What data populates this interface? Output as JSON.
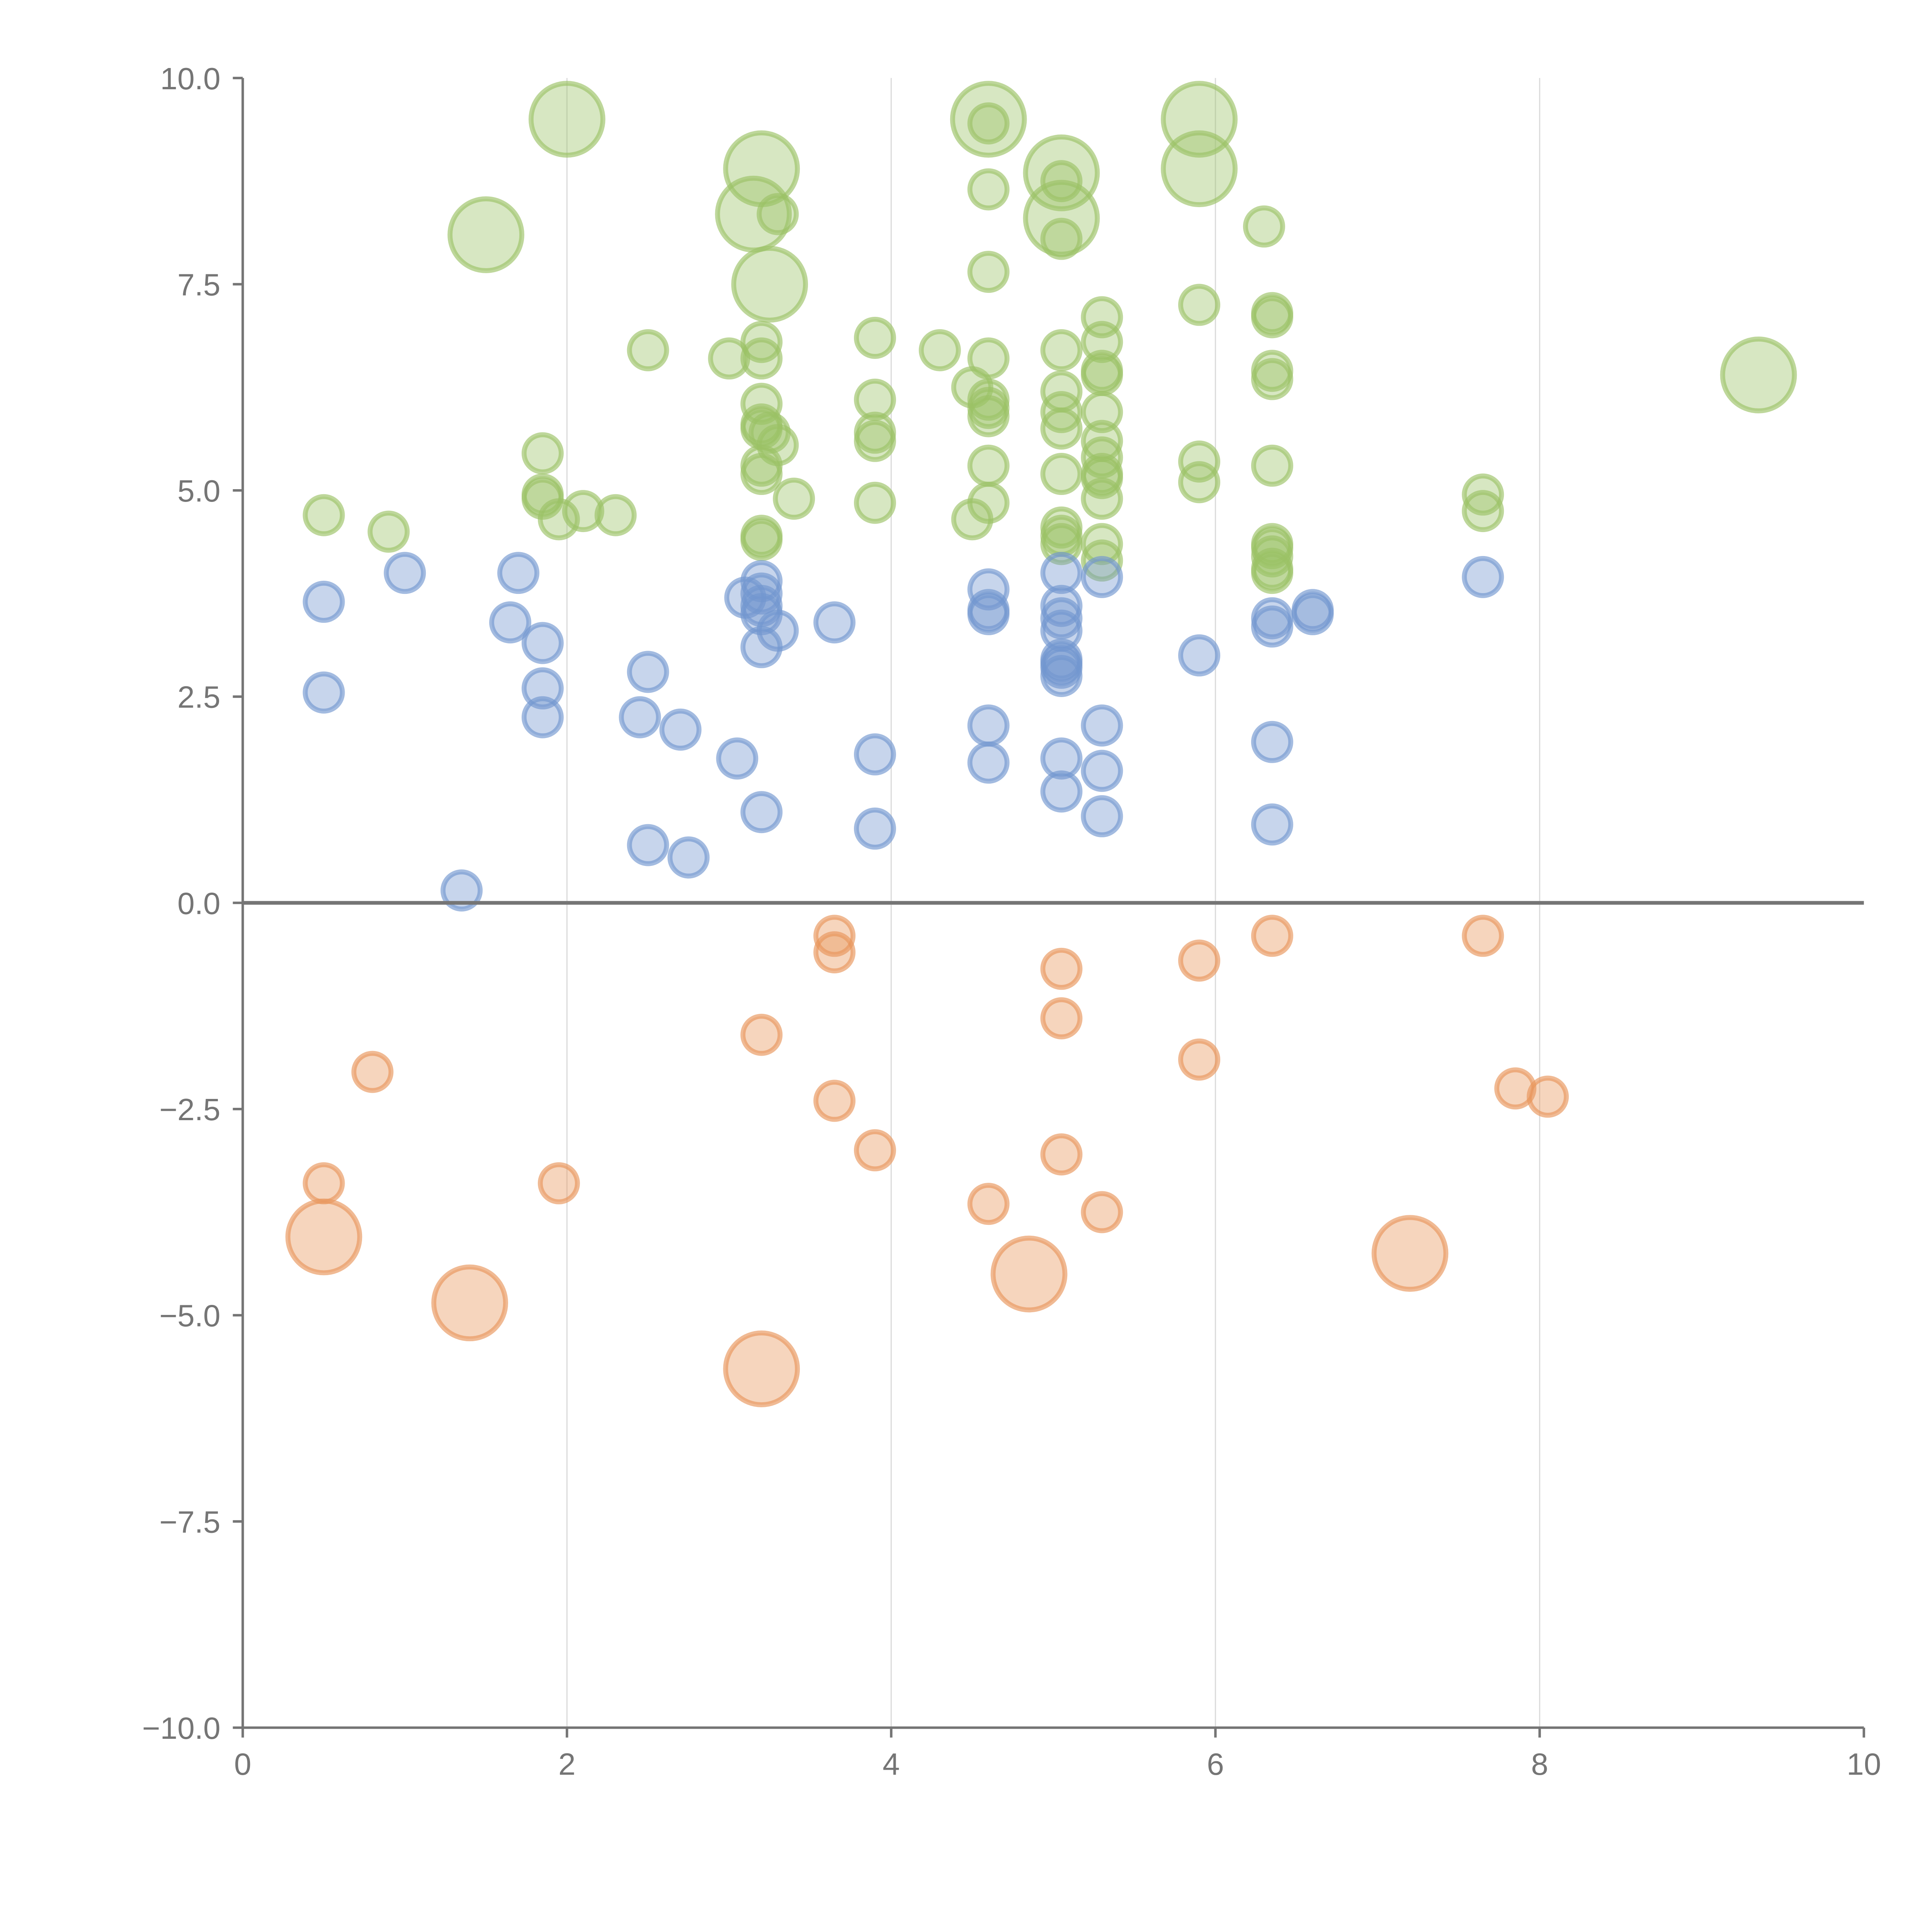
{
  "chart_data": {
    "type": "scatter",
    "title": "",
    "xlabel": "",
    "ylabel": "",
    "xlim": [
      0,
      10
    ],
    "ylim": [
      -10,
      10
    ],
    "x_ticks": [
      0,
      2,
      4,
      6,
      8,
      10
    ],
    "y_ticks": [
      -10,
      -7.5,
      -5,
      -2.5,
      0,
      2.5,
      5,
      7.5,
      10
    ],
    "x_tick_labels": [
      "0",
      "2",
      "4",
      "6",
      "8",
      "10"
    ],
    "y_tick_labels": [
      "−10.0",
      "−7.5",
      "−5.0",
      "−2.5",
      "0.0",
      "2.5",
      "5.0",
      "7.5",
      "10.0"
    ],
    "grid": "vertical",
    "reference_line_y": 0,
    "colors": {
      "green": "#9bc266",
      "blue": "#7297cf",
      "orange": "#e8955a"
    },
    "series": [
      {
        "name": "green",
        "color": "#9bc266",
        "points": [
          [
            2.0,
            9.5,
            3
          ],
          [
            4.6,
            9.5,
            3
          ],
          [
            5.9,
            9.5,
            3
          ],
          [
            4.6,
            9.45,
            1
          ],
          [
            3.2,
            8.9,
            3
          ],
          [
            5.05,
            8.85,
            3
          ],
          [
            5.9,
            8.9,
            3
          ],
          [
            5.05,
            8.75,
            1
          ],
          [
            4.6,
            8.65,
            1
          ],
          [
            3.15,
            8.35,
            3
          ],
          [
            3.3,
            8.35,
            1
          ],
          [
            5.05,
            8.3,
            3
          ],
          [
            6.3,
            8.2,
            1
          ],
          [
            1.5,
            8.1,
            3
          ],
          [
            5.05,
            8.05,
            1
          ],
          [
            4.6,
            7.65,
            1
          ],
          [
            3.25,
            7.5,
            3
          ],
          [
            5.9,
            7.25,
            1
          ],
          [
            6.35,
            7.15,
            1
          ],
          [
            6.35,
            7.1,
            1
          ],
          [
            5.3,
            7.1,
            1
          ],
          [
            3.2,
            6.8,
            1
          ],
          [
            3.9,
            6.85,
            1
          ],
          [
            5.3,
            6.8,
            1
          ],
          [
            2.5,
            6.7,
            1
          ],
          [
            4.3,
            6.7,
            1
          ],
          [
            5.05,
            6.7,
            1
          ],
          [
            3.2,
            6.6,
            1
          ],
          [
            3.0,
            6.6,
            1
          ],
          [
            4.6,
            6.6,
            1
          ],
          [
            5.3,
            6.45,
            1
          ],
          [
            5.3,
            6.4,
            1
          ],
          [
            6.35,
            6.45,
            1
          ],
          [
            9.35,
            6.4,
            3
          ],
          [
            6.35,
            6.35,
            1
          ],
          [
            4.5,
            6.25,
            1
          ],
          [
            5.05,
            6.2,
            1
          ],
          [
            4.6,
            6.1,
            1
          ],
          [
            3.9,
            6.1,
            1
          ],
          [
            3.2,
            6.05,
            1
          ],
          [
            4.6,
            6.0,
            1
          ],
          [
            5.05,
            5.95,
            1
          ],
          [
            5.3,
            5.95,
            1
          ],
          [
            4.6,
            5.9,
            1
          ],
          [
            3.2,
            5.8,
            1
          ],
          [
            3.2,
            5.75,
            1
          ],
          [
            5.05,
            5.75,
            1
          ],
          [
            3.25,
            5.7,
            1
          ],
          [
            3.9,
            5.7,
            1
          ],
          [
            3.9,
            5.6,
            1
          ],
          [
            5.3,
            5.6,
            1
          ],
          [
            3.3,
            5.55,
            1
          ],
          [
            1.85,
            5.45,
            1
          ],
          [
            5.3,
            5.4,
            1
          ],
          [
            5.9,
            5.35,
            1
          ],
          [
            4.6,
            5.3,
            1
          ],
          [
            3.2,
            5.3,
            1
          ],
          [
            6.35,
            5.3,
            1
          ],
          [
            3.2,
            5.2,
            1
          ],
          [
            5.05,
            5.2,
            1
          ],
          [
            5.3,
            5.2,
            1
          ],
          [
            5.3,
            5.15,
            1
          ],
          [
            5.9,
            5.1,
            1
          ],
          [
            7.65,
            4.95,
            1
          ],
          [
            1.85,
            4.95,
            1
          ],
          [
            1.85,
            4.9,
            1
          ],
          [
            3.4,
            4.9,
            1
          ],
          [
            5.3,
            4.9,
            1
          ],
          [
            3.9,
            4.85,
            1
          ],
          [
            4.6,
            4.85,
            1
          ],
          [
            2.1,
            4.75,
            1
          ],
          [
            7.65,
            4.75,
            1
          ],
          [
            0.5,
            4.7,
            1
          ],
          [
            2.3,
            4.7,
            1
          ],
          [
            1.95,
            4.65,
            1
          ],
          [
            4.5,
            4.65,
            1
          ],
          [
            5.05,
            4.55,
            1
          ],
          [
            0.9,
            4.5,
            1
          ],
          [
            3.2,
            4.45,
            1
          ],
          [
            3.2,
            4.4,
            1
          ],
          [
            5.05,
            4.45,
            1
          ],
          [
            5.05,
            4.35,
            1
          ],
          [
            6.35,
            4.35,
            1
          ],
          [
            6.35,
            4.3,
            1
          ],
          [
            5.3,
            4.35,
            1
          ],
          [
            6.35,
            4.2,
            1
          ],
          [
            5.3,
            4.15,
            1
          ],
          [
            6.35,
            4.05,
            1
          ],
          [
            6.35,
            4.0,
            1
          ]
        ]
      },
      {
        "name": "blue",
        "color": "#7297cf",
        "points": [
          [
            1.0,
            4.0,
            1
          ],
          [
            1.7,
            4.0,
            1
          ],
          [
            5.05,
            4.0,
            1
          ],
          [
            7.65,
            3.95,
            1
          ],
          [
            5.3,
            3.95,
            1
          ],
          [
            3.2,
            3.9,
            1
          ],
          [
            4.6,
            3.8,
            1
          ],
          [
            3.2,
            3.75,
            1
          ],
          [
            3.1,
            3.7,
            1
          ],
          [
            3.2,
            3.6,
            1
          ],
          [
            0.5,
            3.65,
            1
          ],
          [
            5.05,
            3.6,
            1
          ],
          [
            4.6,
            3.55,
            1
          ],
          [
            4.6,
            3.5,
            1
          ],
          [
            6.6,
            3.55,
            1
          ],
          [
            6.6,
            3.5,
            1
          ],
          [
            3.2,
            3.5,
            1
          ],
          [
            5.05,
            3.45,
            1
          ],
          [
            6.35,
            3.45,
            1
          ],
          [
            1.65,
            3.4,
            1
          ],
          [
            3.65,
            3.4,
            1
          ],
          [
            6.35,
            3.35,
            1
          ],
          [
            5.05,
            3.3,
            1
          ],
          [
            3.3,
            3.3,
            1
          ],
          [
            1.85,
            3.15,
            1
          ],
          [
            3.2,
            3.1,
            1
          ],
          [
            5.9,
            3.0,
            1
          ],
          [
            5.05,
            2.95,
            1
          ],
          [
            5.05,
            2.9,
            1
          ],
          [
            5.05,
            2.85,
            1
          ],
          [
            2.5,
            2.8,
            1
          ],
          [
            5.05,
            2.75,
            1
          ],
          [
            1.85,
            2.6,
            1
          ],
          [
            0.5,
            2.55,
            1
          ],
          [
            1.85,
            2.25,
            1
          ],
          [
            2.45,
            2.25,
            1
          ],
          [
            4.6,
            2.15,
            1
          ],
          [
            5.3,
            2.15,
            1
          ],
          [
            2.7,
            2.1,
            1
          ],
          [
            6.35,
            1.95,
            1
          ],
          [
            3.9,
            1.8,
            1
          ],
          [
            3.05,
            1.75,
            1
          ],
          [
            5.05,
            1.75,
            1
          ],
          [
            4.6,
            1.7,
            1
          ],
          [
            5.3,
            1.6,
            1
          ],
          [
            5.05,
            1.35,
            1
          ],
          [
            3.2,
            1.1,
            1
          ],
          [
            5.3,
            1.05,
            1
          ],
          [
            6.35,
            0.95,
            1
          ],
          [
            3.9,
            0.9,
            1
          ],
          [
            2.5,
            0.7,
            1
          ],
          [
            2.75,
            0.55,
            1
          ],
          [
            1.35,
            0.15,
            1
          ]
        ]
      },
      {
        "name": "orange",
        "color": "#e8955a",
        "points": [
          [
            3.65,
            -0.4,
            1
          ],
          [
            6.35,
            -0.4,
            1
          ],
          [
            7.65,
            -0.4,
            1
          ],
          [
            3.65,
            -0.6,
            1
          ],
          [
            5.9,
            -0.7,
            1
          ],
          [
            5.05,
            -0.8,
            1
          ],
          [
            5.05,
            -1.4,
            1
          ],
          [
            3.2,
            -1.6,
            1
          ],
          [
            5.9,
            -1.9,
            1
          ],
          [
            0.8,
            -2.05,
            1
          ],
          [
            7.85,
            -2.25,
            1
          ],
          [
            8.05,
            -2.35,
            1
          ],
          [
            3.65,
            -2.4,
            1
          ],
          [
            3.9,
            -3.0,
            1
          ],
          [
            5.05,
            -3.05,
            1
          ],
          [
            0.5,
            -3.4,
            1
          ],
          [
            1.95,
            -3.4,
            1
          ],
          [
            4.6,
            -3.65,
            1
          ],
          [
            5.3,
            -3.75,
            1
          ],
          [
            0.5,
            -4.05,
            3
          ],
          [
            7.2,
            -4.25,
            3
          ],
          [
            4.85,
            -4.5,
            3
          ],
          [
            1.4,
            -4.85,
            3
          ],
          [
            3.2,
            -5.65,
            3
          ]
        ]
      }
    ]
  }
}
